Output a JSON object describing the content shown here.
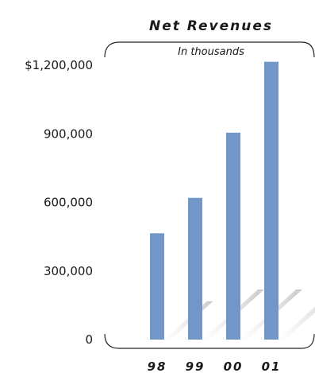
{
  "chart_data": {
    "type": "bar",
    "title": "Net Revenues",
    "subtitle": "In thousands",
    "categories": [
      "98",
      "99",
      "00",
      "01"
    ],
    "values": [
      465000,
      620000,
      905000,
      1215000
    ],
    "ylim": [
      0,
      1200000
    ],
    "yticks": [
      "0",
      "300,000",
      "600,000",
      "900,000",
      "$1,200,000"
    ],
    "ytick_values": [
      0,
      300000,
      600000,
      900000,
      1200000
    ],
    "bar_color": "#7196c8",
    "grid": false
  }
}
